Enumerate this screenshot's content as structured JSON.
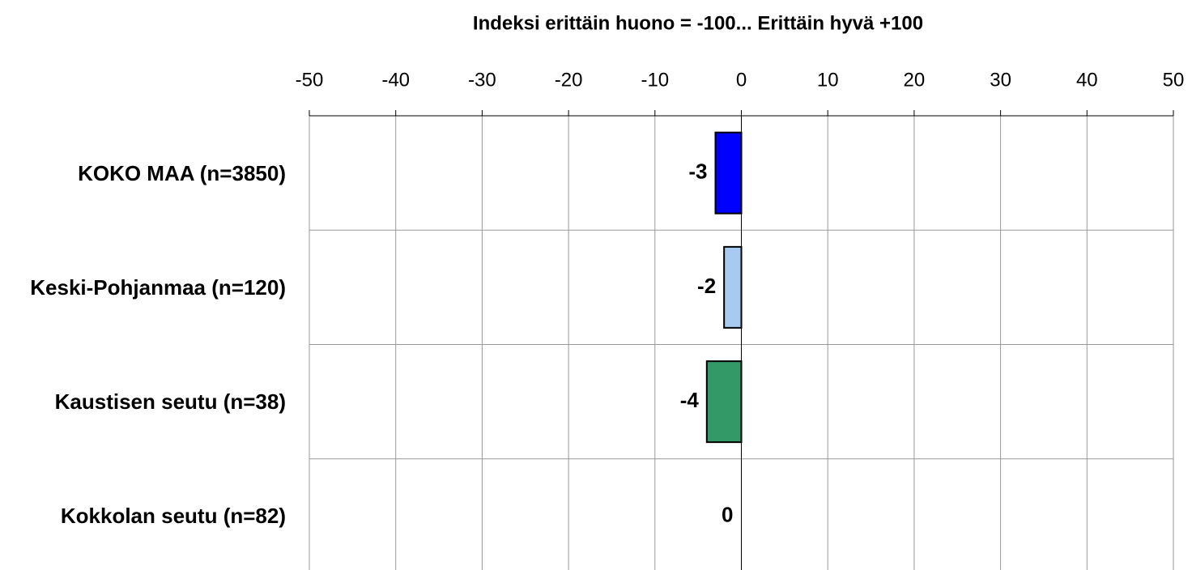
{
  "chart_data": {
    "type": "barh",
    "title": "Indeksi erittäin huono = -100... Erittäin hyvä +100",
    "categories": [
      "KOKO MAA (n=3850)",
      "Keski-Pohjanmaa (n=120)",
      "Kaustisen seutu (n=38)",
      "Kokkolan seutu (n=82)"
    ],
    "values": [
      -3,
      -2,
      -4,
      0
    ],
    "colors": [
      "#0000ff",
      "#a6caf0",
      "#339966",
      "#808080"
    ],
    "xlim": [
      -50,
      50
    ],
    "xticks": [
      -50,
      -40,
      -30,
      -20,
      -10,
      0,
      10,
      20,
      30,
      40,
      50
    ],
    "grid": true
  }
}
